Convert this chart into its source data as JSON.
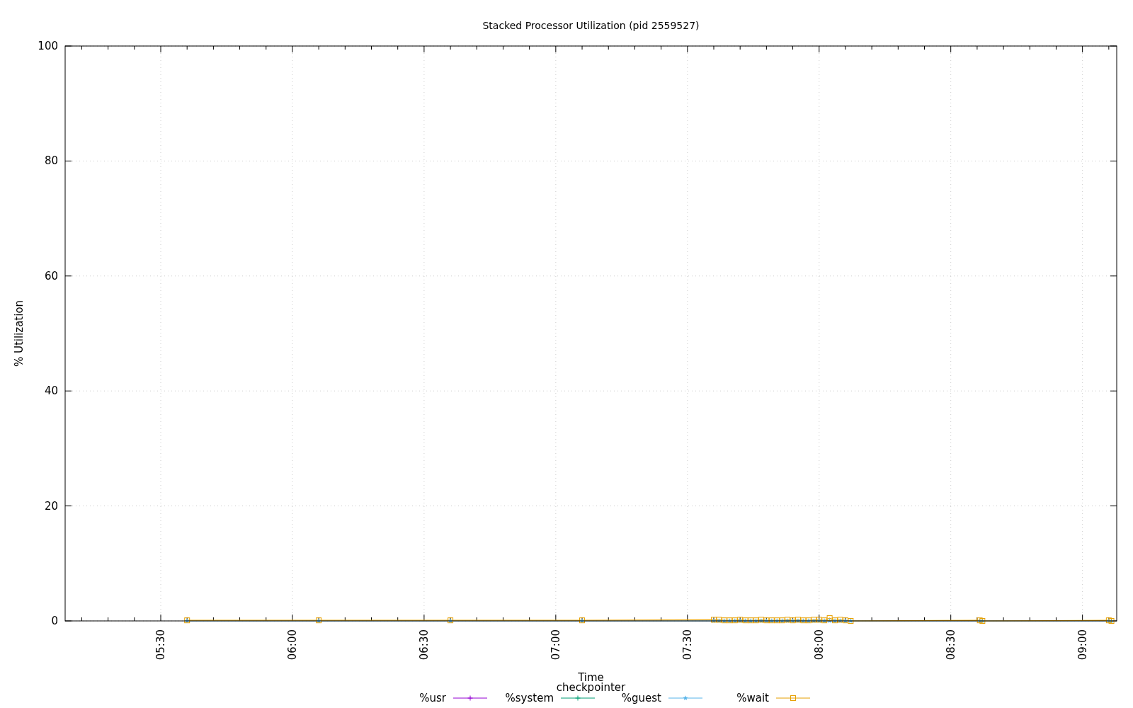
{
  "chart_data": {
    "type": "line",
    "title": "Stacked Processor Utilization (pid 2559527)",
    "xlabel": "Time",
    "ylabel": "% Utilization",
    "legend_title": "checkpointer",
    "xlim": [
      5.137,
      9.13
    ],
    "ylim": [
      0,
      100
    ],
    "yticks": [
      0,
      20,
      40,
      60,
      80,
      100
    ],
    "xticks": [
      {
        "value": 5.2,
        "label": null
      },
      {
        "value": 5.3,
        "label": null
      },
      {
        "value": 5.4,
        "label": null
      },
      {
        "value": 5.5,
        "label": "05:30"
      },
      {
        "value": 5.6,
        "label": null
      },
      {
        "value": 5.7,
        "label": null
      },
      {
        "value": 5.8,
        "label": null
      },
      {
        "value": 5.9,
        "label": null
      },
      {
        "value": 6,
        "label": "06:00"
      },
      {
        "value": 6.1,
        "label": null
      },
      {
        "value": 6.2,
        "label": null
      },
      {
        "value": 6.3,
        "label": null
      },
      {
        "value": 6.4,
        "label": null
      },
      {
        "value": 6.5,
        "label": "06:30"
      },
      {
        "value": 6.6,
        "label": null
      },
      {
        "value": 6.7,
        "label": null
      },
      {
        "value": 6.8,
        "label": null
      },
      {
        "value": 6.9,
        "label": null
      },
      {
        "value": 7,
        "label": "07:00"
      },
      {
        "value": 7.1,
        "label": null
      },
      {
        "value": 7.2,
        "label": null
      },
      {
        "value": 7.3,
        "label": null
      },
      {
        "value": 7.4,
        "label": null
      },
      {
        "value": 7.5,
        "label": "07:30"
      },
      {
        "value": 7.6,
        "label": null
      },
      {
        "value": 7.7,
        "label": null
      },
      {
        "value": 7.8,
        "label": null
      },
      {
        "value": 7.9,
        "label": null
      },
      {
        "value": 8,
        "label": "08:00"
      },
      {
        "value": 8.1,
        "label": null
      },
      {
        "value": 8.2,
        "label": null
      },
      {
        "value": 8.3,
        "label": null
      },
      {
        "value": 8.4,
        "label": null
      },
      {
        "value": 8.5,
        "label": "08:30"
      },
      {
        "value": 8.6,
        "label": null
      },
      {
        "value": 8.7,
        "label": null
      },
      {
        "value": 8.8,
        "label": null
      },
      {
        "value": 8.9,
        "label": null
      },
      {
        "value": 9,
        "label": "09:00"
      },
      {
        "value": 9.1,
        "label": null
      }
    ],
    "grid": true,
    "legend": "bottom",
    "line_style": "solid",
    "x": [
      5.6,
      6.1,
      6.6,
      7.1,
      7.6,
      7.62,
      7.64,
      7.66,
      7.68,
      7.7,
      7.72,
      7.74,
      7.76,
      7.78,
      7.8,
      7.82,
      7.84,
      7.86,
      7.88,
      7.9,
      7.92,
      7.94,
      7.96,
      7.98,
      8,
      8.02,
      8.04,
      8.06,
      8.08,
      8.1,
      8.12,
      8.61,
      8.62,
      9.1,
      9.11
    ],
    "series": [
      {
        "name": "%usr",
        "color": "#9400d3",
        "marker": "cross",
        "values": [
          null,
          null,
          null,
          null,
          null,
          null,
          null,
          null,
          null,
          null,
          null,
          null,
          null,
          null,
          null,
          null,
          null,
          null,
          null,
          null,
          null,
          null,
          null,
          null,
          null,
          null,
          null,
          null,
          null,
          null,
          null,
          null,
          null,
          null,
          null
        ]
      },
      {
        "name": "%system",
        "color": "#009e73",
        "marker": "cross",
        "values": [
          null,
          null,
          null,
          null,
          null,
          null,
          null,
          null,
          null,
          null,
          null,
          null,
          null,
          null,
          null,
          null,
          null,
          null,
          null,
          null,
          null,
          null,
          null,
          null,
          null,
          null,
          null,
          null,
          null,
          null,
          null,
          null,
          null,
          null,
          null
        ]
      },
      {
        "name": "%guest",
        "color": "#56b4e9",
        "marker": "star",
        "values": [
          0,
          0,
          0,
          0,
          0,
          0,
          0,
          0,
          0,
          0,
          0,
          0,
          0,
          0,
          0,
          0,
          0,
          0,
          0,
          0,
          0,
          0,
          0,
          0,
          0,
          0,
          0,
          0,
          0,
          0,
          0,
          0,
          0,
          0,
          0
        ]
      },
      {
        "name": "%wait",
        "color": "#e69f00",
        "marker": "square",
        "values": [
          0.1,
          0.1,
          0.1,
          0.1,
          0.2,
          0.2,
          0.1,
          0.1,
          0.1,
          0.2,
          0.1,
          0.1,
          0.1,
          0.2,
          0.1,
          0.1,
          0.1,
          0.1,
          0.2,
          0.1,
          0.2,
          0.1,
          0.1,
          0.2,
          0.2,
          0.1,
          0.5,
          0.1,
          0.2,
          0.1,
          0,
          0.1,
          0,
          0.1,
          0
        ]
      }
    ]
  }
}
